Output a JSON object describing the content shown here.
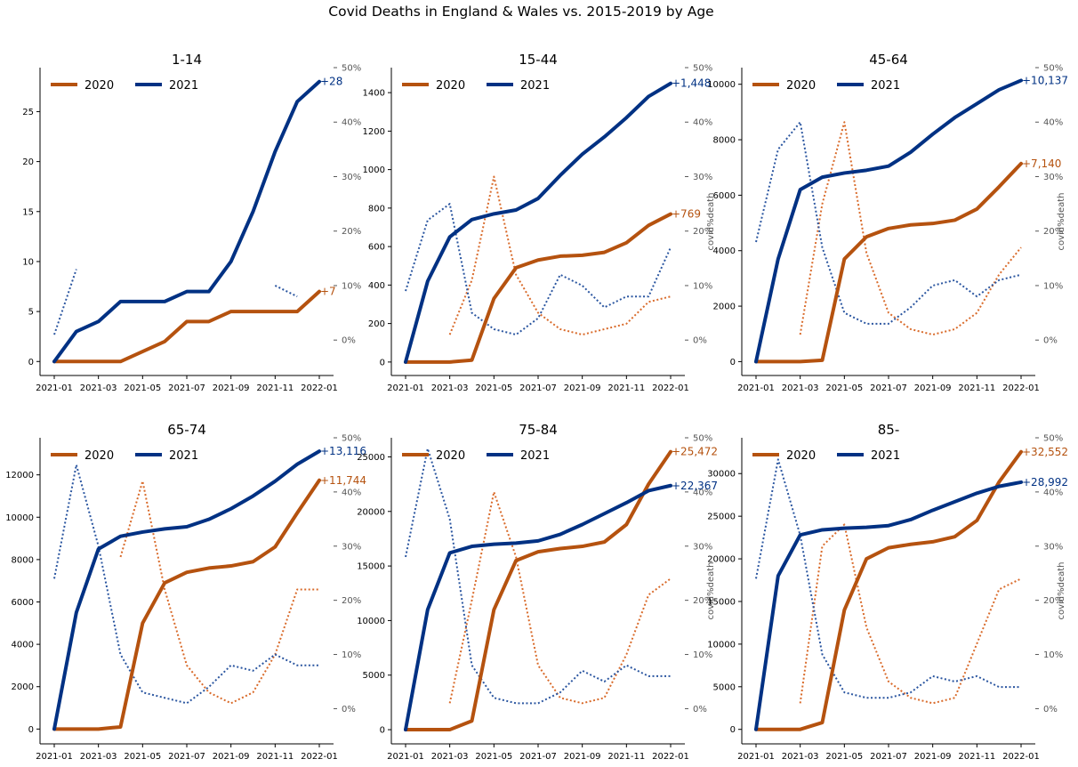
{
  "title": "Covid Deaths in England & Wales vs. 2015-2019 by Age",
  "colors": {
    "y2020": "#b5520f",
    "y2021": "#003183",
    "ratio2020": "#d96b2b",
    "ratio2021": "#2b56a0",
    "muted": "#555555"
  },
  "chart_data": [
    {
      "type": "line",
      "title": "1-14",
      "x": [
        "2021-01",
        "2021-02",
        "2021-03",
        "2021-04",
        "2021-05",
        "2021-06",
        "2021-07",
        "2021-08",
        "2021-09",
        "2021-10",
        "2021-11",
        "2021-12",
        "2022-01"
      ],
      "xticks": [
        "2021-01",
        "2021-03",
        "2021-05",
        "2021-07",
        "2021-09",
        "2021-11",
        "2022-01"
      ],
      "ylim": [
        -1.4,
        29.4
      ],
      "yticks": [
        "0",
        "5",
        "10",
        "15",
        "20",
        "25"
      ],
      "ytick_values": [
        0,
        5,
        10,
        15,
        20,
        25
      ],
      "y2lim": [
        -6.5,
        50
      ],
      "y2ticks": [
        "0%",
        "10%",
        "20%",
        "30%",
        "40%",
        "50%"
      ],
      "y2label": "",
      "legend": [
        "2020",
        "2021"
      ],
      "legend_loc": "upper left",
      "series": [
        {
          "name": "2020",
          "axis": "left",
          "style": "solid",
          "values": [
            0,
            0,
            0,
            0,
            1,
            2,
            4,
            4,
            5,
            5,
            5,
            5,
            7
          ],
          "end_label": "+7"
        },
        {
          "name": "2021",
          "axis": "left",
          "style": "solid",
          "values": [
            0,
            3,
            4,
            6,
            6,
            6,
            7,
            7,
            10,
            15,
            21,
            26,
            28
          ],
          "end_label": "+28"
        },
        {
          "name": "2020 covid%death",
          "axis": "right",
          "style": "dotted",
          "values": [
            null,
            null,
            null,
            null,
            null,
            null,
            null,
            null,
            null,
            null,
            null,
            12,
            null
          ]
        },
        {
          "name": "2021 covid%death",
          "axis": "right",
          "style": "dotted",
          "values": [
            1,
            13,
            null,
            null,
            null,
            null,
            null,
            null,
            null,
            null,
            10,
            8,
            null
          ]
        }
      ]
    },
    {
      "type": "line",
      "title": "15-44",
      "x": [
        "2021-01",
        "2021-02",
        "2021-03",
        "2021-04",
        "2021-05",
        "2021-06",
        "2021-07",
        "2021-08",
        "2021-09",
        "2021-10",
        "2021-11",
        "2021-12",
        "2022-01"
      ],
      "xticks": [
        "2021-01",
        "2021-03",
        "2021-05",
        "2021-07",
        "2021-09",
        "2021-11",
        "2022-01"
      ],
      "ylim": [
        -70,
        1530
      ],
      "yticks": [
        "0",
        "200",
        "400",
        "600",
        "800",
        "1000",
        "1200",
        "1400"
      ],
      "ytick_values": [
        0,
        200,
        400,
        600,
        800,
        1000,
        1200,
        1400
      ],
      "y2lim": [
        -6.5,
        50
      ],
      "y2ticks": [
        "0%",
        "10%",
        "20%",
        "30%",
        "40%",
        "50%"
      ],
      "y2label": "covid%death",
      "legend": [
        "2020",
        "2021"
      ],
      "legend_loc": "upper left",
      "series": [
        {
          "name": "2020",
          "axis": "left",
          "style": "solid",
          "values": [
            0,
            0,
            0,
            10,
            330,
            490,
            530,
            550,
            555,
            570,
            620,
            710,
            769
          ],
          "end_label": "+769"
        },
        {
          "name": "2021",
          "axis": "left",
          "style": "solid",
          "values": [
            0,
            420,
            650,
            740,
            770,
            790,
            850,
            970,
            1080,
            1170,
            1270,
            1380,
            1448
          ],
          "end_label": "+1,448"
        },
        {
          "name": "2020 covid%death",
          "axis": "right",
          "style": "dotted",
          "values": [
            null,
            null,
            1,
            11,
            30,
            12,
            5,
            2,
            1,
            2,
            3,
            7,
            8
          ]
        },
        {
          "name": "2021 covid%death",
          "axis": "right",
          "style": "dotted",
          "values": [
            9,
            22,
            25,
            5,
            2,
            1,
            4,
            12,
            10,
            6,
            8,
            8,
            17
          ]
        }
      ]
    },
    {
      "type": "line",
      "title": "45-64",
      "x": [
        "2021-01",
        "2021-02",
        "2021-03",
        "2021-04",
        "2021-05",
        "2021-06",
        "2021-07",
        "2021-08",
        "2021-09",
        "2021-10",
        "2021-11",
        "2021-12",
        "2022-01"
      ],
      "xticks": [
        "2021-01",
        "2021-03",
        "2021-05",
        "2021-07",
        "2021-09",
        "2021-11",
        "2022-01"
      ],
      "ylim": [
        -500,
        10600
      ],
      "yticks": [
        "0",
        "2000",
        "4000",
        "6000",
        "8000",
        "10000"
      ],
      "ytick_values": [
        0,
        2000,
        4000,
        6000,
        8000,
        10000
      ],
      "y2lim": [
        -6.5,
        50
      ],
      "y2ticks": [
        "0%",
        "10%",
        "20%",
        "30%",
        "40%",
        "50%"
      ],
      "y2label": "covid%death",
      "legend": [
        "2020",
        "2021"
      ],
      "legend_loc": "upper left",
      "series": [
        {
          "name": "2020",
          "axis": "left",
          "style": "solid",
          "values": [
            0,
            0,
            0,
            50,
            3700,
            4500,
            4800,
            4930,
            4980,
            5100,
            5500,
            6300,
            7140
          ],
          "end_label": "+7,140"
        },
        {
          "name": "2021",
          "axis": "left",
          "style": "solid",
          "values": [
            0,
            3700,
            6200,
            6650,
            6800,
            6900,
            7050,
            7550,
            8200,
            8800,
            9300,
            9800,
            10137
          ],
          "end_label": "+10,137"
        },
        {
          "name": "2020 covid%death",
          "axis": "right",
          "style": "dotted",
          "values": [
            null,
            null,
            1,
            25,
            40,
            16,
            5,
            2,
            1,
            2,
            5,
            12,
            17
          ]
        },
        {
          "name": "2021 covid%death",
          "axis": "right",
          "style": "dotted",
          "values": [
            18,
            35,
            40,
            17,
            5,
            3,
            3,
            6,
            10,
            11,
            8,
            11,
            12
          ]
        }
      ]
    },
    {
      "type": "line",
      "title": "65-74",
      "x": [
        "2021-01",
        "2021-02",
        "2021-03",
        "2021-04",
        "2021-05",
        "2021-06",
        "2021-07",
        "2021-08",
        "2021-09",
        "2021-10",
        "2021-11",
        "2021-12",
        "2022-01"
      ],
      "xticks": [
        "2021-01",
        "2021-03",
        "2021-05",
        "2021-07",
        "2021-09",
        "2021-11",
        "2022-01"
      ],
      "ylim": [
        -700,
        13750
      ],
      "yticks": [
        "0",
        "2000",
        "4000",
        "6000",
        "8000",
        "10000",
        "12000"
      ],
      "ytick_values": [
        0,
        2000,
        4000,
        6000,
        8000,
        10000,
        12000
      ],
      "y2lim": [
        -6.5,
        50
      ],
      "y2ticks": [
        "0%",
        "10%",
        "20%",
        "30%",
        "40%",
        "50%"
      ],
      "y2label": "",
      "legend": [
        "2020",
        "2021"
      ],
      "legend_loc": "upper left",
      "series": [
        {
          "name": "2020",
          "axis": "left",
          "style": "solid",
          "values": [
            0,
            0,
            0,
            100,
            5000,
            6900,
            7400,
            7600,
            7700,
            7900,
            8600,
            10200,
            11744
          ],
          "end_label": "+11,744"
        },
        {
          "name": "2021",
          "axis": "left",
          "style": "solid",
          "values": [
            0,
            5500,
            8500,
            9100,
            9300,
            9450,
            9550,
            9900,
            10400,
            11000,
            11700,
            12500,
            13116
          ],
          "end_label": "+13,116"
        },
        {
          "name": "2020 covid%death",
          "axis": "right",
          "style": "dotted",
          "values": [
            null,
            null,
            null,
            28,
            42,
            22,
            8,
            3,
            1,
            3,
            10,
            22,
            22
          ]
        },
        {
          "name": "2021 covid%death",
          "axis": "right",
          "style": "dotted",
          "values": [
            24,
            45,
            30,
            10,
            3,
            2,
            1,
            4,
            8,
            7,
            10,
            8,
            8
          ]
        }
      ]
    },
    {
      "type": "line",
      "title": "75-84",
      "x": [
        "2021-01",
        "2021-02",
        "2021-03",
        "2021-04",
        "2021-05",
        "2021-06",
        "2021-07",
        "2021-08",
        "2021-09",
        "2021-10",
        "2021-11",
        "2021-12",
        "2022-01"
      ],
      "xticks": [
        "2021-01",
        "2021-03",
        "2021-05",
        "2021-07",
        "2021-09",
        "2021-11",
        "2022-01"
      ],
      "ylim": [
        -1300,
        26750
      ],
      "yticks": [
        "0",
        "5000",
        "10000",
        "15000",
        "20000",
        "25000"
      ],
      "ytick_values": [
        0,
        5000,
        10000,
        15000,
        20000,
        25000
      ],
      "y2lim": [
        -6.5,
        50
      ],
      "y2ticks": [
        "0%",
        "10%",
        "20%",
        "30%",
        "40%",
        "50%"
      ],
      "y2label": "covid%death",
      "legend": [
        "2020",
        "2021"
      ],
      "legend_loc": "upper left",
      "series": [
        {
          "name": "2020",
          "axis": "left",
          "style": "solid",
          "values": [
            0,
            0,
            0,
            800,
            11000,
            15500,
            16300,
            16600,
            16800,
            17200,
            18800,
            22500,
            25472
          ],
          "end_label": "+25,472"
        },
        {
          "name": "2021",
          "axis": "left",
          "style": "solid",
          "values": [
            0,
            11000,
            16200,
            16800,
            17000,
            17100,
            17300,
            17900,
            18800,
            19800,
            20800,
            21900,
            22367
          ],
          "end_label": "+22,367"
        },
        {
          "name": "2020 covid%death",
          "axis": "right",
          "style": "dotted",
          "values": [
            null,
            null,
            1,
            20,
            40,
            28,
            8,
            2,
            1,
            2,
            10,
            21,
            24
          ]
        },
        {
          "name": "2021 covid%death",
          "axis": "right",
          "style": "dotted",
          "values": [
            28,
            48,
            35,
            8,
            2,
            1,
            1,
            3,
            7,
            5,
            8,
            6,
            6
          ]
        }
      ]
    },
    {
      "type": "line",
      "title": "85-",
      "x": [
        "2021-01",
        "2021-02",
        "2021-03",
        "2021-04",
        "2021-05",
        "2021-06",
        "2021-07",
        "2021-08",
        "2021-09",
        "2021-10",
        "2021-11",
        "2021-12",
        "2022-01"
      ],
      "xticks": [
        "2021-01",
        "2021-03",
        "2021-05",
        "2021-07",
        "2021-09",
        "2021-11",
        "2022-01"
      ],
      "ylim": [
        -1700,
        34200
      ],
      "yticks": [
        "0",
        "5000",
        "10000",
        "15000",
        "20000",
        "25000",
        "30000"
      ],
      "ytick_values": [
        0,
        5000,
        10000,
        15000,
        20000,
        25000,
        30000
      ],
      "y2lim": [
        -6.5,
        50
      ],
      "y2ticks": [
        "0%",
        "10%",
        "20%",
        "30%",
        "40%",
        "50%"
      ],
      "y2label": "covid%death",
      "legend": [
        "2020",
        "2021"
      ],
      "legend_loc": "upper left",
      "series": [
        {
          "name": "2020",
          "axis": "left",
          "style": "solid",
          "values": [
            0,
            0,
            0,
            800,
            14000,
            20000,
            21300,
            21700,
            22000,
            22600,
            24500,
            29000,
            32552
          ],
          "end_label": "+32,552"
        },
        {
          "name": "2021",
          "axis": "left",
          "style": "solid",
          "values": [
            0,
            18000,
            22800,
            23400,
            23600,
            23700,
            23900,
            24600,
            25700,
            26700,
            27700,
            28500,
            28992
          ],
          "end_label": "+28,992"
        },
        {
          "name": "2020 covid%death",
          "axis": "right",
          "style": "dotted",
          "values": [
            null,
            null,
            1,
            30,
            34,
            15,
            5,
            2,
            1,
            2,
            12,
            22,
            24
          ]
        },
        {
          "name": "2021 covid%death",
          "axis": "right",
          "style": "dotted",
          "values": [
            24,
            46,
            32,
            10,
            3,
            2,
            2,
            3,
            6,
            5,
            6,
            4,
            4
          ]
        }
      ]
    }
  ]
}
